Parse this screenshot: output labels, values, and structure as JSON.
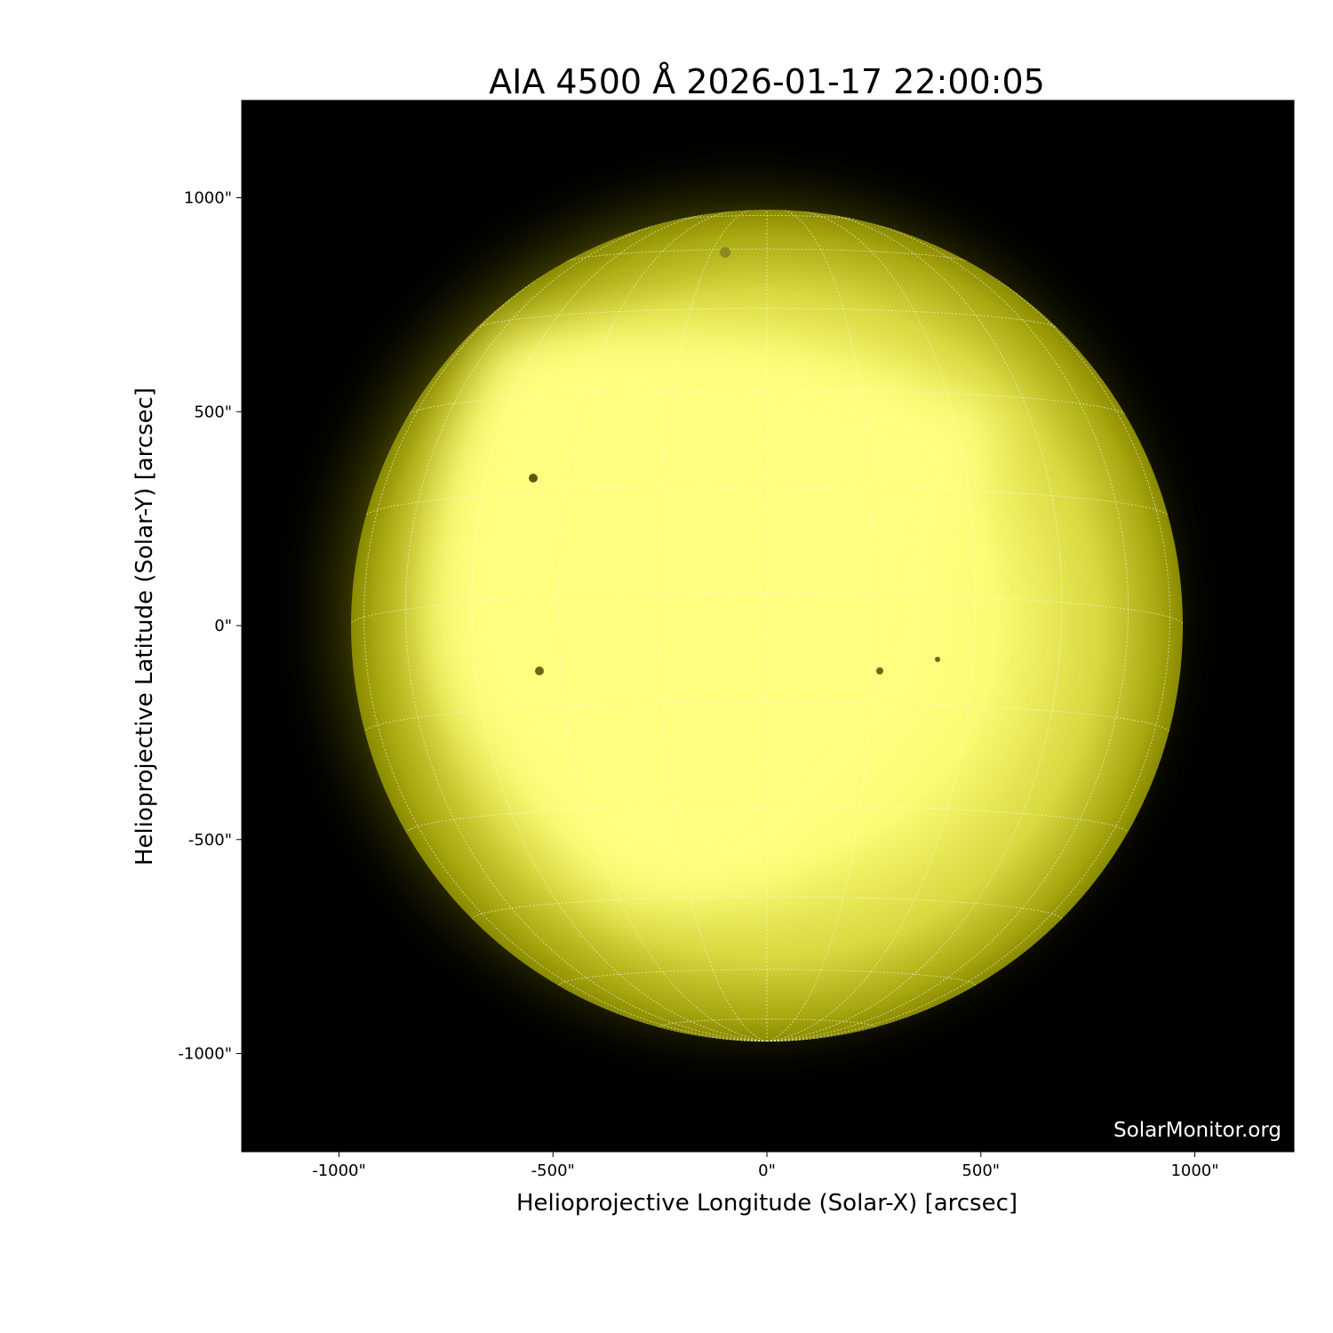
{
  "chart_data": {
    "type": "heatmap",
    "title": "AIA 4500 Å 2026-01-17 22:00:05",
    "xlabel": "Helioprojective Longitude (Solar-X) [arcsec]",
    "ylabel": "Helioprojective Latitude (Solar-Y) [arcsec]",
    "xlim": [
      -1230,
      1230
    ],
    "ylim": [
      -1230,
      1230
    ],
    "x_ticks": [
      -1000,
      -500,
      0,
      500,
      1000
    ],
    "x_tick_labels": [
      "-1000\"",
      "-500\"",
      "0\"",
      "500\"",
      "1000\""
    ],
    "y_ticks": [
      1000,
      500,
      0,
      -500,
      -1000
    ],
    "y_tick_labels": [
      "1000\"",
      "500\"",
      "0\"",
      "-500\"",
      "-1000\""
    ],
    "solar_radius_arcsec": 975,
    "grid": "heliographic lat/lon, 15° spacing, dotted white",
    "colormap": "yellow (black → #ffff80)",
    "watermark": "SolarMonitor.org"
  }
}
